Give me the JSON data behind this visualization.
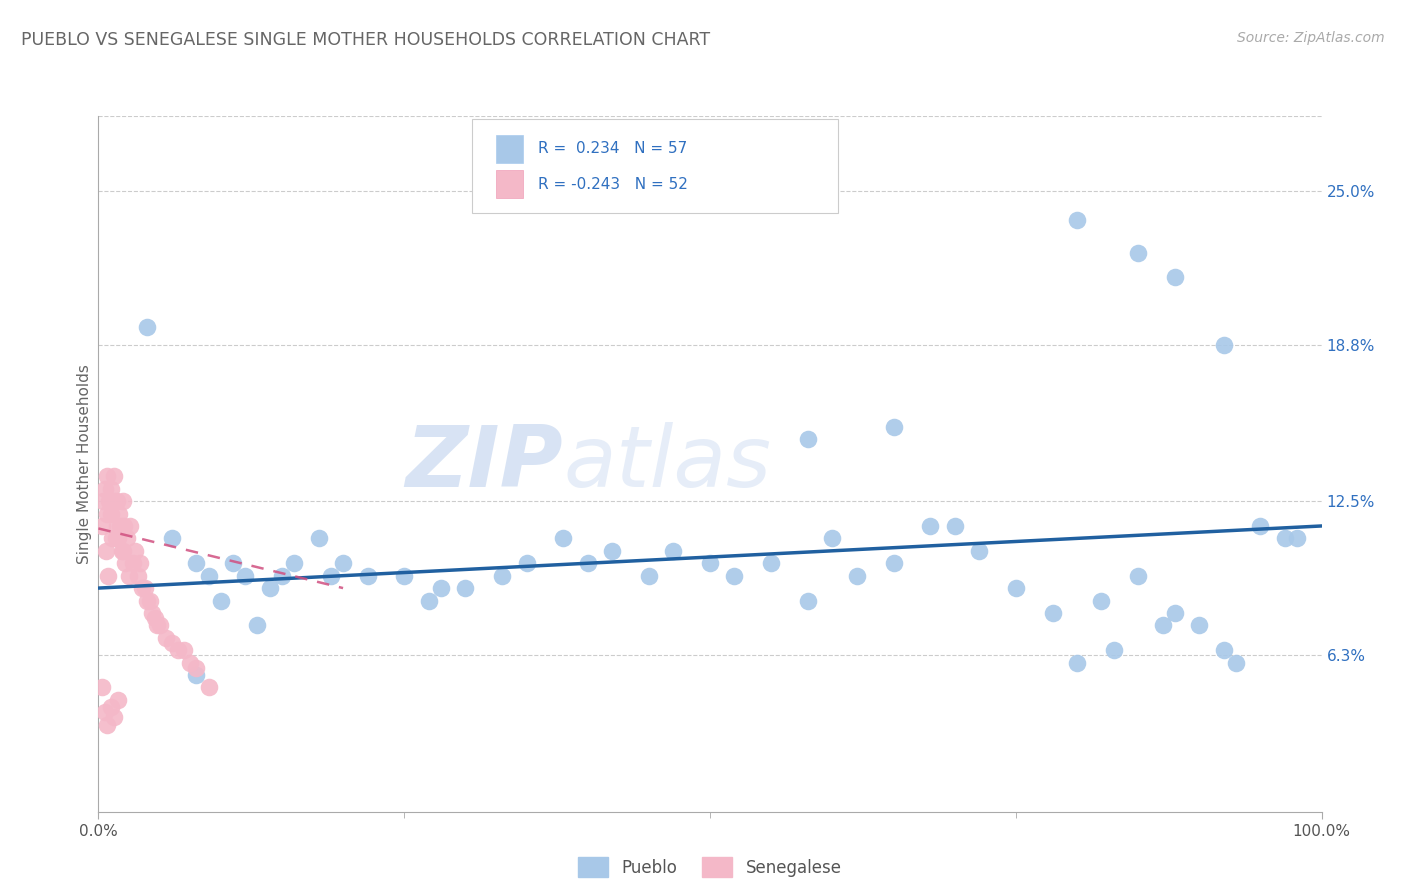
{
  "title": "PUEBLO VS SENEGALESE SINGLE MOTHER HOUSEHOLDS CORRELATION CHART",
  "source": "Source: ZipAtlas.com",
  "ylabel": "Single Mother Households",
  "xlim": [
    0.0,
    1.0
  ],
  "ylim": [
    0.0,
    0.28
  ],
  "xtick_labels": [
    "0.0%",
    "100.0%"
  ],
  "ytick_labels": [
    "6.3%",
    "12.5%",
    "18.8%",
    "25.0%"
  ],
  "ytick_values": [
    0.063,
    0.125,
    0.188,
    0.25
  ],
  "pueblo_color": "#a8c8e8",
  "senegalese_color": "#f4b8c8",
  "pueblo_line_color": "#2060a0",
  "senegalese_line_color": "#d05080",
  "bg_color": "#ffffff",
  "grid_color": "#cccccc",
  "title_color": "#666666",
  "watermark_zip": "ZIP",
  "watermark_atlas": "atlas",
  "r_text_color": "#3070c0",
  "ytick_color": "#3070c0",
  "pueblo_scatter_x": [
    0.04,
    0.06,
    0.08,
    0.09,
    0.1,
    0.11,
    0.12,
    0.13,
    0.14,
    0.15,
    0.16,
    0.18,
    0.19,
    0.2,
    0.22,
    0.25,
    0.27,
    0.28,
    0.3,
    0.33,
    0.35,
    0.38,
    0.4,
    0.42,
    0.45,
    0.47,
    0.5,
    0.52,
    0.55,
    0.58,
    0.6,
    0.62,
    0.65,
    0.68,
    0.7,
    0.72,
    0.75,
    0.78,
    0.8,
    0.82,
    0.83,
    0.85,
    0.87,
    0.88,
    0.9,
    0.92,
    0.93,
    0.95,
    0.97,
    0.98,
    0.08,
    0.58,
    0.65,
    0.8,
    0.85,
    0.88,
    0.92
  ],
  "pueblo_scatter_y": [
    0.195,
    0.11,
    0.1,
    0.095,
    0.085,
    0.1,
    0.095,
    0.075,
    0.09,
    0.095,
    0.1,
    0.11,
    0.095,
    0.1,
    0.095,
    0.095,
    0.085,
    0.09,
    0.09,
    0.095,
    0.1,
    0.11,
    0.1,
    0.105,
    0.095,
    0.105,
    0.1,
    0.095,
    0.1,
    0.085,
    0.11,
    0.095,
    0.1,
    0.115,
    0.115,
    0.105,
    0.09,
    0.08,
    0.06,
    0.085,
    0.065,
    0.095,
    0.075,
    0.08,
    0.075,
    0.065,
    0.06,
    0.115,
    0.11,
    0.11,
    0.055,
    0.15,
    0.155,
    0.238,
    0.225,
    0.215,
    0.188
  ],
  "senegalese_scatter_x": [
    0.003,
    0.004,
    0.005,
    0.006,
    0.007,
    0.007,
    0.008,
    0.009,
    0.01,
    0.01,
    0.011,
    0.012,
    0.013,
    0.014,
    0.015,
    0.015,
    0.016,
    0.017,
    0.018,
    0.019,
    0.02,
    0.02,
    0.021,
    0.022,
    0.023,
    0.025,
    0.026,
    0.028,
    0.03,
    0.032,
    0.034,
    0.036,
    0.038,
    0.04,
    0.042,
    0.044,
    0.046,
    0.048,
    0.05,
    0.055,
    0.06,
    0.065,
    0.07,
    0.075,
    0.08,
    0.09,
    0.003,
    0.005,
    0.007,
    0.01,
    0.013,
    0.016
  ],
  "senegalese_scatter_y": [
    0.115,
    0.125,
    0.13,
    0.105,
    0.12,
    0.135,
    0.095,
    0.125,
    0.12,
    0.13,
    0.11,
    0.125,
    0.135,
    0.11,
    0.115,
    0.125,
    0.11,
    0.12,
    0.115,
    0.105,
    0.105,
    0.125,
    0.115,
    0.1,
    0.11,
    0.095,
    0.115,
    0.1,
    0.105,
    0.095,
    0.1,
    0.09,
    0.09,
    0.085,
    0.085,
    0.08,
    0.078,
    0.075,
    0.075,
    0.07,
    0.068,
    0.065,
    0.065,
    0.06,
    0.058,
    0.05,
    0.05,
    0.04,
    0.035,
    0.042,
    0.038,
    0.045
  ],
  "pueblo_trend_x": [
    0.0,
    1.0
  ],
  "pueblo_trend_y": [
    0.09,
    0.115
  ],
  "senegalese_trend_x": [
    0.0,
    0.2
  ],
  "senegalese_trend_y": [
    0.114,
    0.09
  ]
}
